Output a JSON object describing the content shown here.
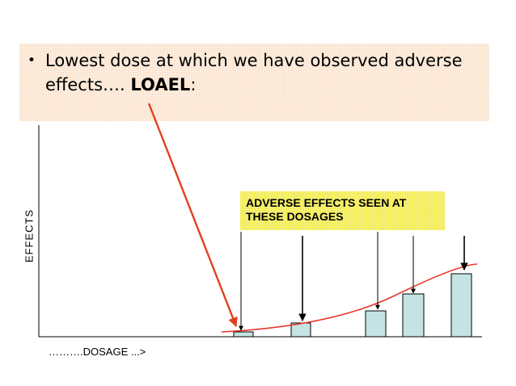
{
  "slide": {
    "bullet": "•",
    "text_main": "Lowest dose at which we have observed adverse effects….",
    "text_term": "LOAEL",
    "text_colon": ":"
  },
  "callout": {
    "line1": "ADVERSE EFFECTS SEEN AT",
    "line2": "THESE DOSAGES"
  },
  "axes": {
    "ylabel": "EFFECTS",
    "xlabel": "……….DOSAGE ...>"
  },
  "colors": {
    "banner": "#fbe4cf",
    "callout": "#f3ec55",
    "bar_fill": "#c4e4e4",
    "curve": "#e8362a",
    "loael_arrow": "#e2401f"
  },
  "chart_data": {
    "type": "bar",
    "bar_heights_relative": [
      0.06,
      0.2,
      0.4,
      0.65,
      1.0
    ],
    "trend": "increasing curve through bar tops",
    "arrowed_bars": 5
  }
}
